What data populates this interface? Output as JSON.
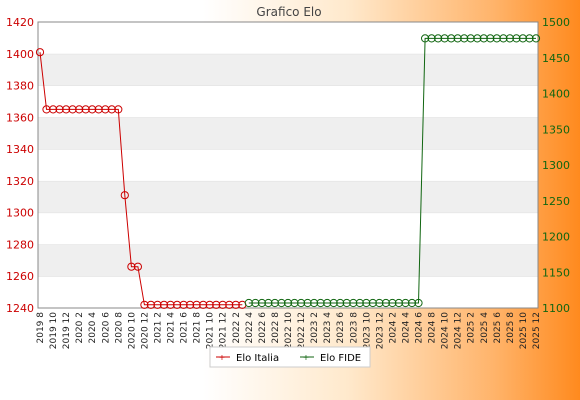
{
  "chart_data": {
    "type": "line",
    "title": "Grafico Elo",
    "xlabel": "",
    "grid": "horizontal",
    "legend_position": "bottom-center",
    "categories": [
      "2019 8",
      "2019 9",
      "2019 10",
      "2019 11",
      "2019 12",
      "2020 1",
      "2020 2",
      "2020 3",
      "2020 4",
      "2020 5",
      "2020 6",
      "2020 7",
      "2020 8",
      "2020 9",
      "2020 10",
      "2020 11",
      "2020 12",
      "2021 1",
      "2021 2",
      "2021 3",
      "2021 4",
      "2021 5",
      "2021 6",
      "2021 7",
      "2021 8",
      "2021 9",
      "2021 10",
      "2021 11",
      "2021 12",
      "2022 1",
      "2022 2",
      "2022 3",
      "2022 4",
      "2022 5",
      "2022 6",
      "2022 7",
      "2022 8",
      "2022 9",
      "2022 10",
      "2022 11",
      "2022 12",
      "2023 1",
      "2023 2",
      "2023 3",
      "2023 4",
      "2023 5",
      "2023 6",
      "2023 7",
      "2023 8",
      "2023 9",
      "2023 10",
      "2023 11",
      "2023 12",
      "2024 1",
      "2024 2",
      "2024 3",
      "2024 4",
      "2024 5",
      "2024 6",
      "2024 7",
      "2024 8",
      "2024 9",
      "2024 10",
      "2024 11",
      "2024 12",
      "2025 1",
      "2025 2",
      "2025 3",
      "2025 4",
      "2025 5",
      "2025 6",
      "2025 7",
      "2025 8",
      "2025 9",
      "2025 10",
      "2025 11",
      "2025 12"
    ],
    "x_tick_labels": [
      "2019 8",
      "2019 10",
      "2019 12",
      "2020 2",
      "2020 4",
      "2020 6",
      "2020 8",
      "2020 10",
      "2020 12",
      "2021 2",
      "2021 4",
      "2021 6",
      "2021 8",
      "2021 10",
      "2021 12",
      "2022 2",
      "2022 4",
      "2022 6",
      "2022 8",
      "2022 10",
      "2022 12",
      "2023 2",
      "2023 4",
      "2023 6",
      "2023 8",
      "2023 10",
      "2023 12",
      "2024 2",
      "2024 4",
      "2024 6",
      "2024 8",
      "2024 10",
      "2024 12",
      "2025 2",
      "2025 4",
      "2025 6",
      "2025 8",
      "2025 10",
      "2025 12"
    ],
    "y_left": {
      "ylim": [
        1240,
        1420
      ],
      "ticks": [
        1240,
        1260,
        1280,
        1300,
        1320,
        1340,
        1360,
        1380,
        1400,
        1420
      ],
      "color": "#cc0000"
    },
    "y_right": {
      "ylim": [
        1100,
        1500
      ],
      "ticks": [
        1100,
        1150,
        1200,
        1250,
        1300,
        1350,
        1400,
        1450,
        1500
      ],
      "color": "#116611"
    },
    "series": [
      {
        "name": "Elo Italia",
        "axis": "left",
        "color": "#cc0000",
        "values": [
          1401,
          1365,
          1365,
          1365,
          1365,
          1365,
          1365,
          1365,
          1365,
          1365,
          1365,
          1365,
          1365,
          1311,
          1266,
          1266,
          1242,
          1242,
          1242,
          1242,
          1242,
          1242,
          1242,
          1242,
          1242,
          1242,
          1242,
          1242,
          1242,
          1242,
          1242,
          1242,
          null,
          null,
          null,
          null,
          null,
          null,
          null,
          null,
          null,
          null,
          null,
          null,
          null,
          null,
          null,
          null,
          null,
          null,
          null,
          null,
          null,
          null,
          null,
          null,
          null,
          null,
          null,
          null,
          null,
          null,
          null,
          null,
          null,
          null,
          null,
          null,
          null,
          null,
          null,
          null,
          null,
          null,
          null,
          null,
          null
        ]
      },
      {
        "name": "Elo FIDE",
        "axis": "right",
        "color": "#116611",
        "values": [
          null,
          null,
          null,
          null,
          null,
          null,
          null,
          null,
          null,
          null,
          null,
          null,
          null,
          null,
          null,
          null,
          null,
          null,
          null,
          null,
          null,
          null,
          null,
          null,
          null,
          null,
          null,
          null,
          null,
          null,
          null,
          null,
          1107,
          1107,
          1107,
          1107,
          1107,
          1107,
          1107,
          1107,
          1107,
          1107,
          1107,
          1107,
          1107,
          1107,
          1107,
          1107,
          1107,
          1107,
          1107,
          1107,
          1107,
          1107,
          1107,
          1107,
          1107,
          1107,
          1107,
          1477,
          1477,
          1477,
          1477,
          1477,
          1477,
          1477,
          1477,
          1477,
          1477,
          1477,
          1477,
          1477,
          1477,
          1477,
          1477,
          1477,
          1477
        ]
      }
    ]
  }
}
